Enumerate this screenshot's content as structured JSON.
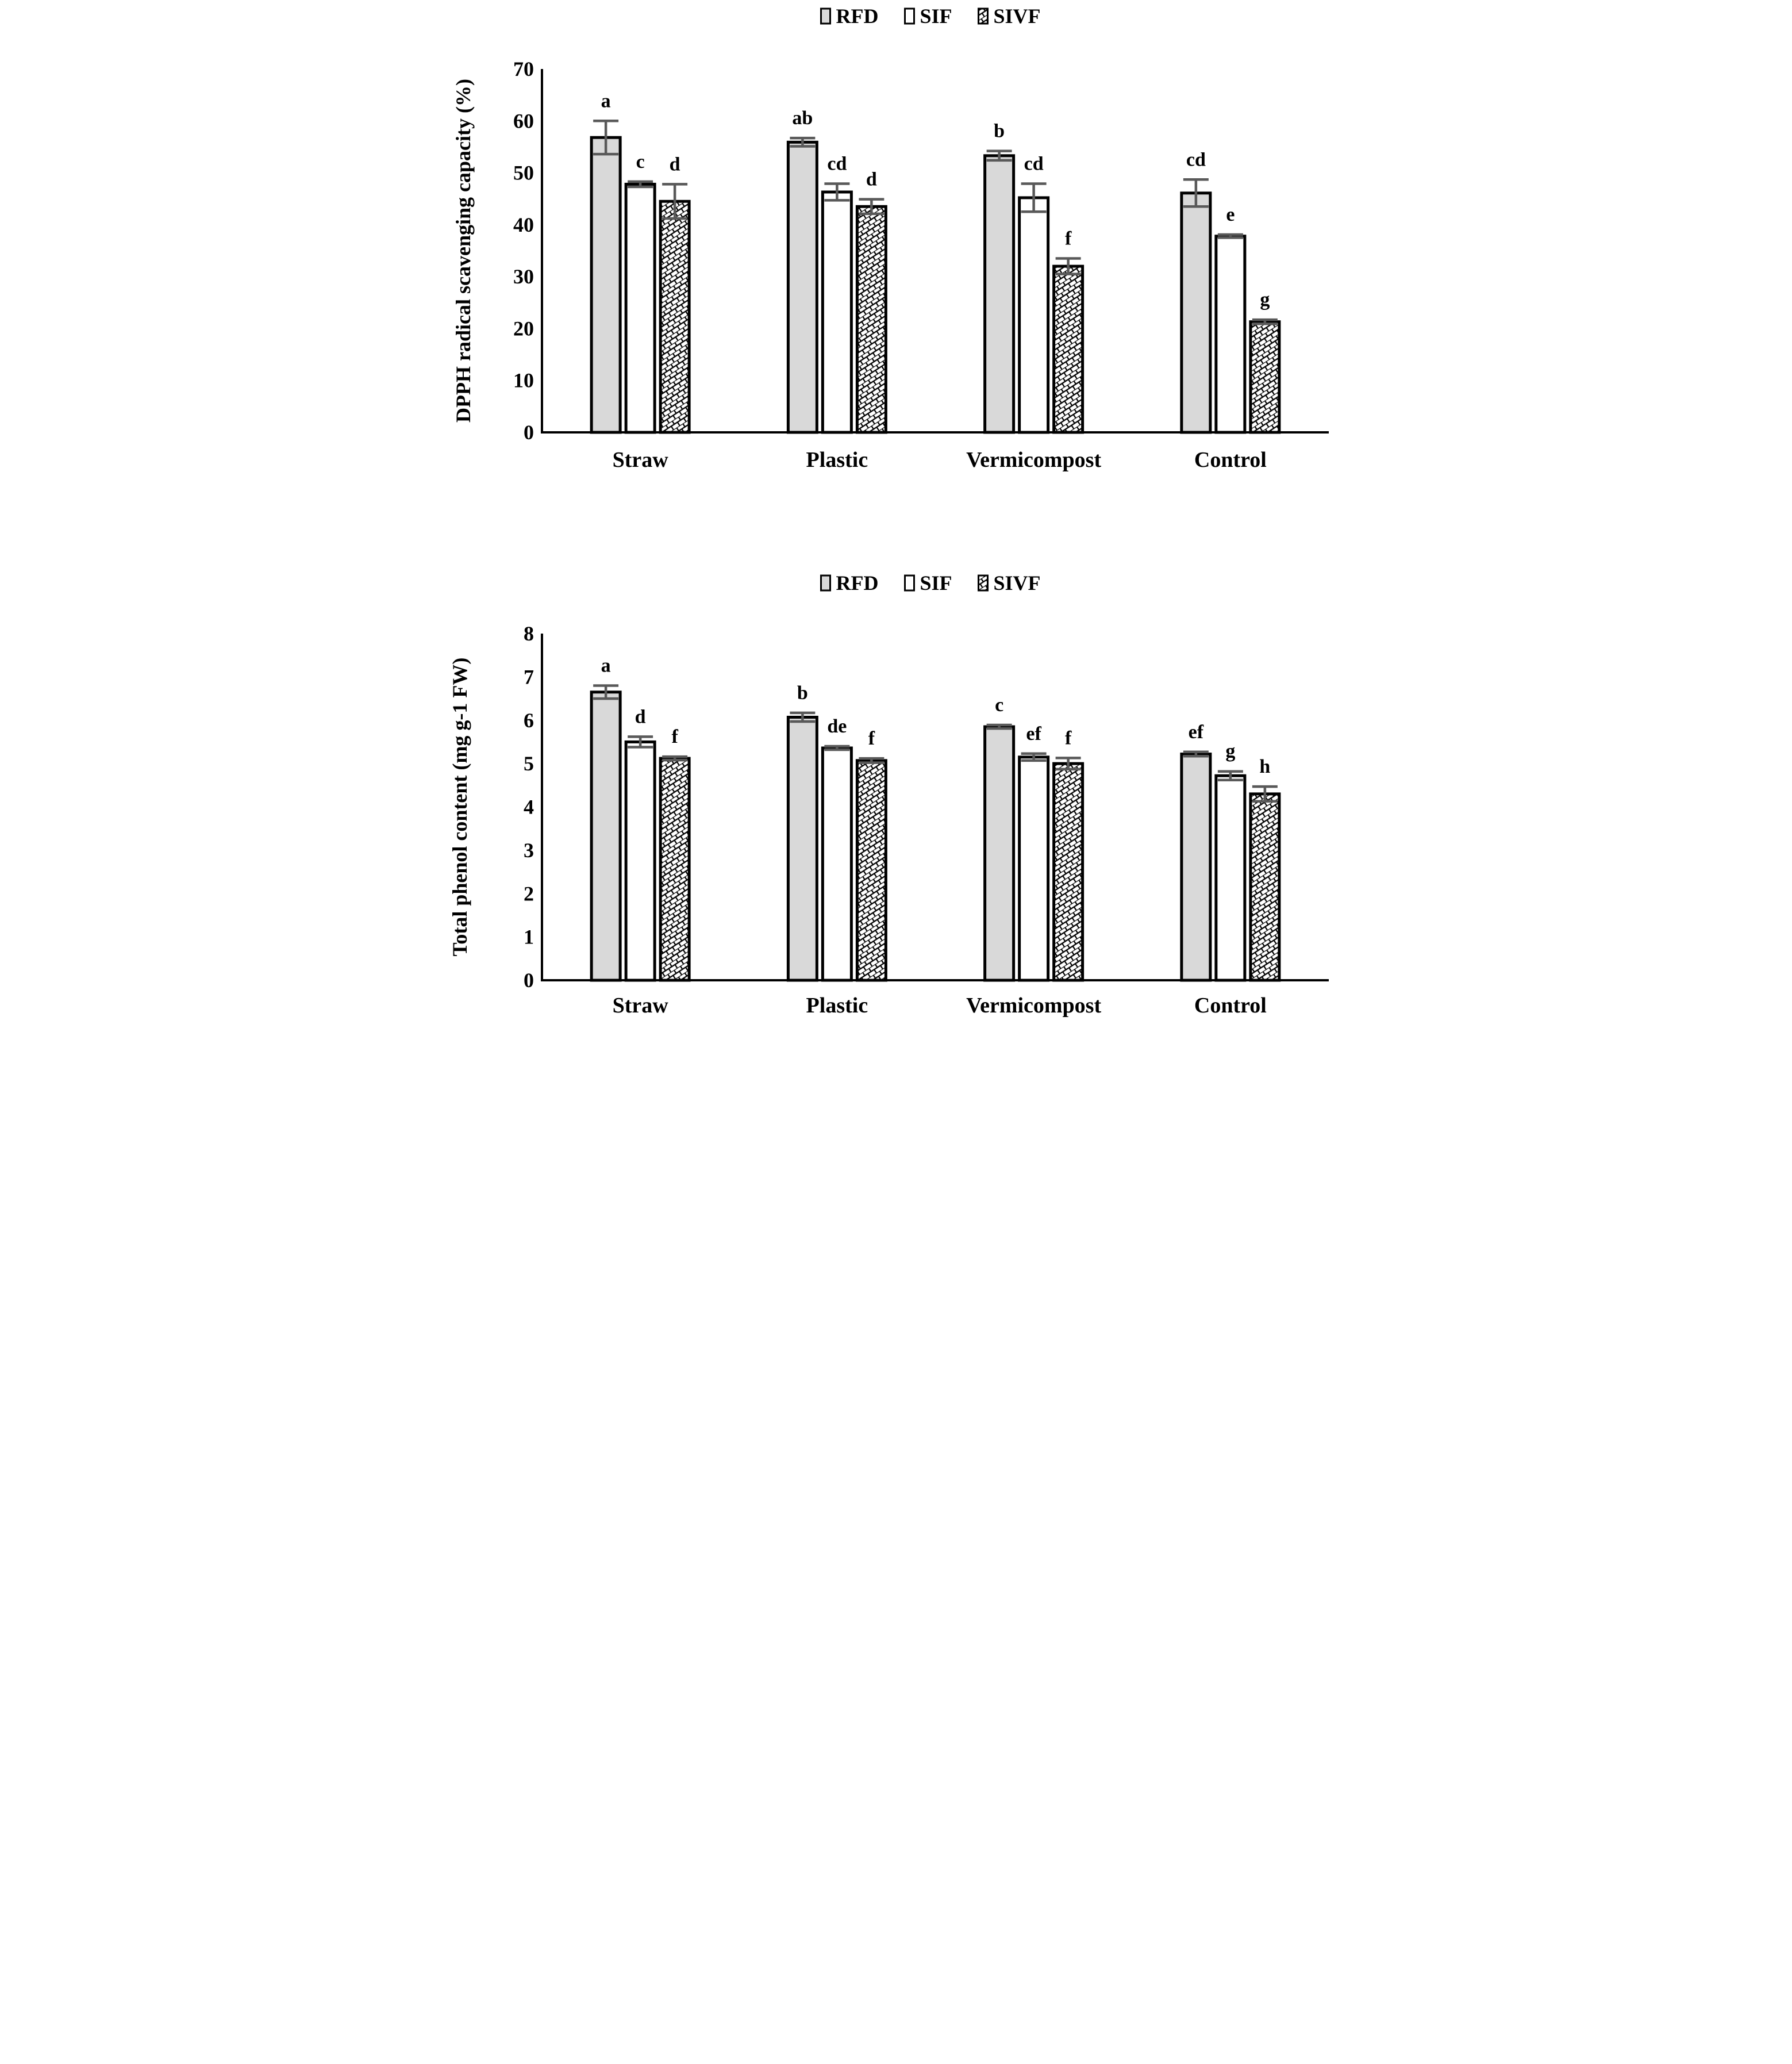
{
  "page": {
    "background": "#ffffff"
  },
  "colors": {
    "bar_fill_rfd": "#d9d9d9",
    "bar_fill_sif": "#ffffff",
    "bar_stroke": "#000000",
    "hatch_line": "#000000",
    "error_bar": "#595959",
    "text": "#000000"
  },
  "legend": {
    "items": [
      {
        "label": "RFD",
        "swatch": "gray-fill"
      },
      {
        "label": "SIF",
        "swatch": "white-fill"
      },
      {
        "label": "SIVF",
        "swatch": "diagonal-brick-hatch"
      }
    ]
  },
  "chart_data": [
    {
      "id": "dpph",
      "type": "bar",
      "title": "",
      "xlabel": "",
      "ylabel": "DPPH radical scavenging capacity (%)",
      "ylim": [
        0,
        70
      ],
      "yticks": [
        0,
        10,
        20,
        30,
        40,
        50,
        60,
        70
      ],
      "grid": false,
      "legend_position": "top-center",
      "legend": [
        "RFD",
        "SIF",
        "SIVF"
      ],
      "categories": [
        "Straw",
        "Plastic",
        "Vermicompost",
        "Control"
      ],
      "series": [
        {
          "name": "RFD",
          "style": "gray",
          "values": [
            56.8,
            55.9,
            53.3,
            46.1
          ],
          "errors": [
            3.2,
            0.8,
            0.9,
            2.6
          ],
          "letters": [
            "a",
            "ab",
            "b",
            "cd"
          ]
        },
        {
          "name": "SIF",
          "style": "white",
          "values": [
            47.8,
            46.3,
            45.2,
            37.8
          ],
          "errors": [
            0.5,
            1.6,
            2.7,
            0.3
          ],
          "letters": [
            "c",
            "cd",
            "cd",
            "e"
          ]
        },
        {
          "name": "SIVF",
          "style": "hatch",
          "values": [
            44.5,
            43.5,
            32.0,
            21.3
          ],
          "errors": [
            3.3,
            1.4,
            1.5,
            0.4
          ],
          "letters": [
            "d",
            "d",
            "f",
            "g"
          ]
        }
      ]
    },
    {
      "id": "phenol",
      "type": "bar",
      "title": "",
      "xlabel": "",
      "ylabel": "Total phenol content (mg g-1 FW)",
      "ylim": [
        0,
        8
      ],
      "yticks": [
        0,
        1,
        2,
        3,
        4,
        5,
        6,
        7,
        8
      ],
      "grid": false,
      "legend_position": "top-center",
      "legend": [
        "RFD",
        "SIF",
        "SIVF"
      ],
      "categories": [
        "Straw",
        "Plastic",
        "Vermicompost",
        "Control"
      ],
      "series": [
        {
          "name": "RFD",
          "style": "gray",
          "values": [
            6.65,
            6.07,
            5.85,
            5.22
          ],
          "errors": [
            0.15,
            0.1,
            0.04,
            0.05
          ],
          "letters": [
            "a",
            "b",
            "c",
            "ef"
          ]
        },
        {
          "name": "SIF",
          "style": "white",
          "values": [
            5.5,
            5.36,
            5.15,
            4.72
          ],
          "errors": [
            0.12,
            0.04,
            0.08,
            0.1
          ],
          "letters": [
            "d",
            "de",
            "ef",
            "g"
          ]
        },
        {
          "name": "SIVF",
          "style": "hatch",
          "values": [
            5.12,
            5.07,
            5.0,
            4.3
          ],
          "errors": [
            0.04,
            0.05,
            0.13,
            0.17
          ],
          "letters": [
            "f",
            "f",
            "f",
            "h"
          ]
        }
      ]
    }
  ]
}
